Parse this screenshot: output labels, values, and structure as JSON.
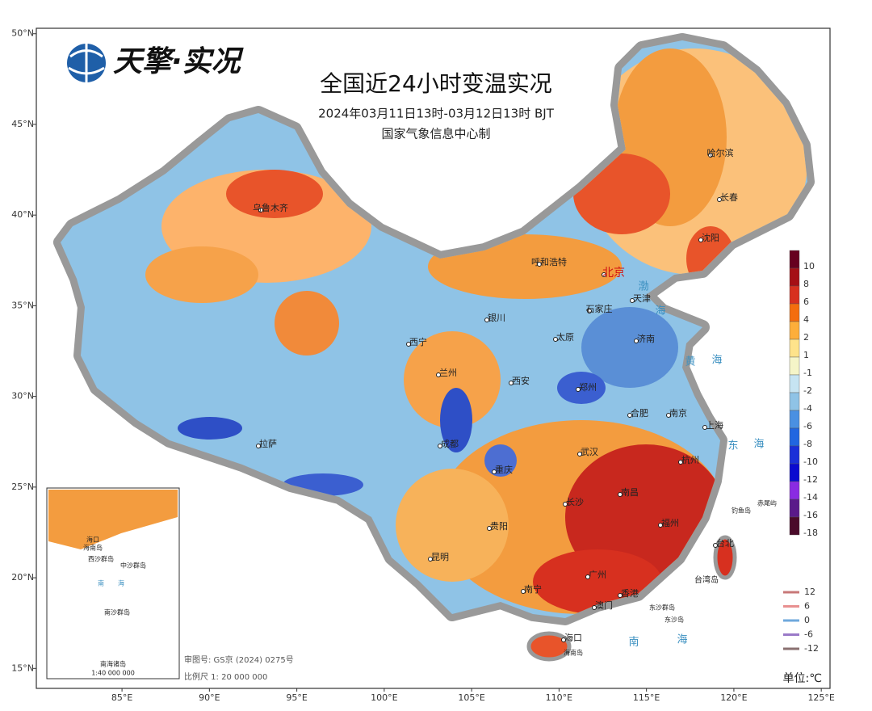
{
  "header": {
    "logo": "天擎·实况",
    "title": "全国近24小时变温实况",
    "subtitle": "2024年03月11日13时-03月12日13时 BJT",
    "producer": "国家气象信息中心制"
  },
  "axes": {
    "xlim": [
      80.1,
      125.5
    ],
    "ylim": [
      13.9,
      50.3
    ],
    "xticks": [
      {
        "value": 85,
        "label": "85°E"
      },
      {
        "value": 90,
        "label": "90°E"
      },
      {
        "value": 95,
        "label": "95°E"
      },
      {
        "value": 100,
        "label": "100°E"
      },
      {
        "value": 105,
        "label": "105°E"
      },
      {
        "value": 110,
        "label": "110°E"
      },
      {
        "value": 115,
        "label": "115°E"
      },
      {
        "value": 120,
        "label": "120°E"
      },
      {
        "value": 125,
        "label": "125°E"
      }
    ],
    "yticks": [
      {
        "value": 15,
        "label": "15°N"
      },
      {
        "value": 20,
        "label": "20°N"
      },
      {
        "value": 25,
        "label": "25°N"
      },
      {
        "value": 30,
        "label": "30°N"
      },
      {
        "value": 35,
        "label": "35°N"
      },
      {
        "value": 40,
        "label": "40°N"
      },
      {
        "value": 45,
        "label": "45°N"
      },
      {
        "value": 50,
        "label": "50°N"
      }
    ]
  },
  "cities": [
    "乌鲁木齐",
    "哈尔滨",
    "长春",
    "沈阳",
    "呼和浩特",
    "北京",
    "天津",
    "石家庄",
    "银川",
    "太原",
    "济南",
    "西宁",
    "兰州",
    "西安",
    "郑州",
    "合肥",
    "南京",
    "上海",
    "拉萨",
    "成都",
    "重庆",
    "武汉",
    "杭州",
    "南昌",
    "长沙",
    "福州",
    "贵阳",
    "台北",
    "昆明",
    "南宁",
    "广州",
    "香港",
    "澳门",
    "海口"
  ],
  "islands": [
    "台湾岛",
    "海南岛",
    "钓鱼岛",
    "赤尾屿",
    "东沙群岛",
    "东沙岛"
  ],
  "seas": [
    "渤",
    "海",
    "黄",
    "海",
    "东",
    "海",
    "南",
    "海"
  ],
  "inset": {
    "title": "南海诸岛",
    "scale": "1:40 000 000",
    "labels": [
      "海口",
      "海南岛",
      "西沙群岛",
      "中沙群岛",
      "南",
      "海",
      "南沙群岛"
    ]
  },
  "legend": {
    "items": [
      {
        "value": 10,
        "color": "#67001f"
      },
      {
        "value": 8,
        "color": "#a50f15"
      },
      {
        "value": 6,
        "color": "#d7301f"
      },
      {
        "value": 4,
        "color": "#f46d0d"
      },
      {
        "value": 2,
        "color": "#fdae3a"
      },
      {
        "value": 1,
        "color": "#fee38b"
      },
      {
        "value": -1,
        "color": "#f5f5c8"
      },
      {
        "value": -2,
        "color": "#c6e4f2"
      },
      {
        "value": -4,
        "color": "#8fc3e6"
      },
      {
        "value": -6,
        "color": "#4a90e2"
      },
      {
        "value": -8,
        "color": "#2166e0"
      },
      {
        "value": -10,
        "color": "#1a2fd8"
      },
      {
        "value": -12,
        "color": "#0a0ad0"
      },
      {
        "value": -14,
        "color": "#8a2be2"
      },
      {
        "value": -16,
        "color": "#5a1a8a"
      },
      {
        "value": -18,
        "color": "#4a0a2a"
      }
    ]
  },
  "contour_legend": {
    "items": [
      {
        "value": 12,
        "color": "#c87878"
      },
      {
        "value": 6,
        "color": "#e89090"
      },
      {
        "value": 0,
        "color": "#6fa8dc"
      },
      {
        "value": -6,
        "color": "#9a7ac8"
      },
      {
        "value": -12,
        "color": "#8a7070"
      }
    ]
  },
  "footer": {
    "approval": "审图号: GS京 (2024) 0275号",
    "scale": "比例尺 1: 20 000 000",
    "unit": "单位:℃"
  }
}
